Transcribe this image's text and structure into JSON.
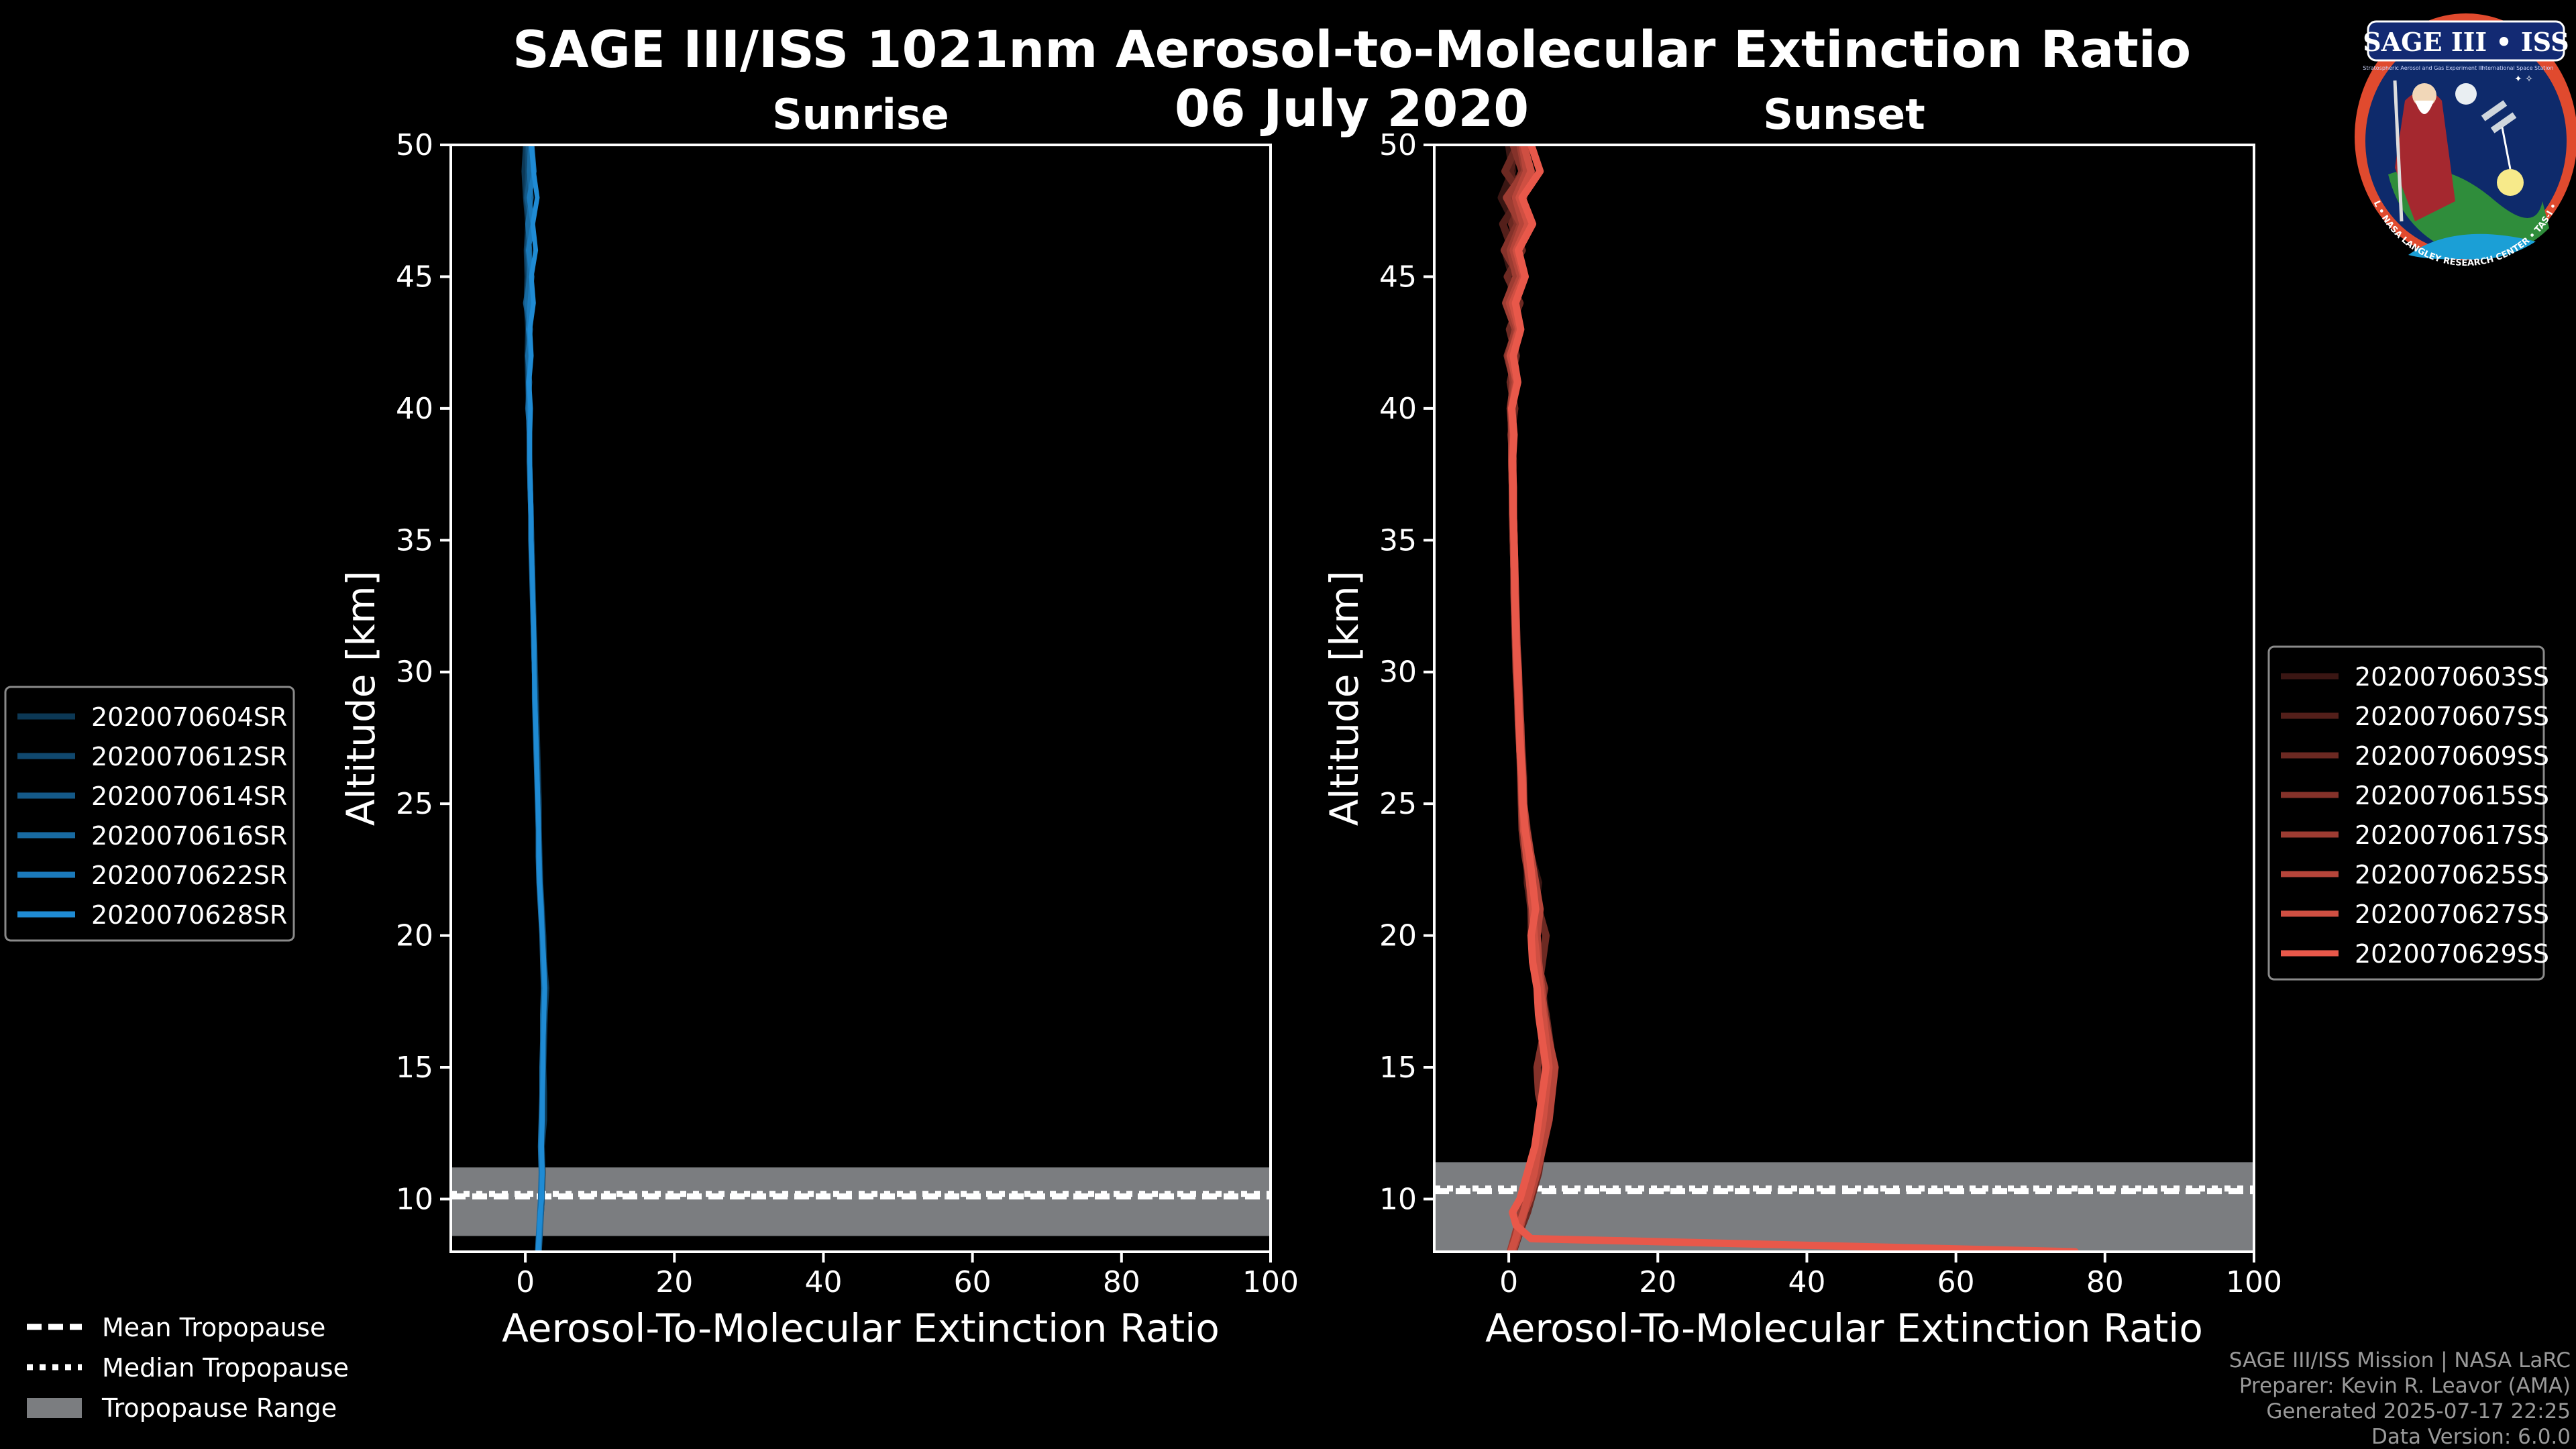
{
  "header": {
    "title": "SAGE III/ISS 1021nm Aerosol-to-Molecular Extinction Ratio",
    "date": "06 July 2020"
  },
  "logo": {
    "title": "SAGE III • ISS",
    "ring_text": "BALL • NASA LANGLEY RESEARCH CENTER • TAS-I • ESA",
    "sub_left": "Stratospheric Aerosol and Gas Experiment III",
    "sub_right": "International Space Station"
  },
  "footer": {
    "line1": "SAGE III/ISS Mission | NASA LaRC",
    "line2": "Preparer: Kevin R. Leavor (AMA)",
    "line3": "Generated 2025-07-17 22:25",
    "line4": "Data Version: 6.0.0"
  },
  "colors": {
    "sunrise": "#1f8bd4",
    "sunset": "#e8584a",
    "tropopause_range": "#7b7d80"
  },
  "tropopause_legend": {
    "mean": "Mean Tropopause",
    "median": "Median Tropopause",
    "range": "Tropopause Range"
  },
  "chart_data": [
    {
      "type": "line",
      "panel": "sunrise",
      "title": "Sunrise",
      "xlabel": "Aerosol-To-Molecular Extinction Ratio",
      "ylabel": "Altitude [km]",
      "xlim": [
        -10,
        100
      ],
      "ylim": [
        8,
        50
      ],
      "xticks": [
        0,
        20,
        40,
        60,
        80,
        100
      ],
      "yticks": [
        10,
        15,
        20,
        25,
        30,
        35,
        40,
        45,
        50
      ],
      "tropopause": {
        "mean": 10.1,
        "median": 10.2,
        "range": [
          8.6,
          11.2
        ]
      },
      "legend_position": "outside-left",
      "altitudes": [
        8.0,
        8.5,
        9.0,
        9.5,
        10.0,
        11.0,
        12.0,
        13.0,
        14.0,
        15.0,
        16.0,
        17.0,
        18.0,
        19.0,
        20.0,
        21.0,
        22.0,
        23.0,
        24.0,
        25.0,
        26.0,
        27.0,
        28.0,
        29.0,
        30.0,
        31.0,
        32.0,
        33.0,
        34.0,
        35.0,
        36.0,
        37.0,
        38.0,
        39.0,
        40.0,
        41.0,
        42.0,
        43.0,
        44.0,
        45.0,
        46.0,
        47.0,
        48.0,
        49.0,
        50.0
      ],
      "series": [
        {
          "name": "2020070604SR",
          "values": [
            1.8,
            1.9,
            2.0,
            2.2,
            2.3,
            2.4,
            2.3,
            2.6,
            2.6,
            2.5,
            2.6,
            2.7,
            2.9,
            2.6,
            2.5,
            2.3,
            2.1,
            2.0,
            1.9,
            1.9,
            1.8,
            1.7,
            1.6,
            1.5,
            1.4,
            1.3,
            1.2,
            1.1,
            1.0,
            0.9,
            0.8,
            0.7,
            0.6,
            0.5,
            0.4,
            0.3,
            0.2,
            0.3,
            0.1,
            0.2,
            0.1,
            0.3,
            0.0,
            -0.2,
            0.0
          ]
        },
        {
          "name": "2020070612SR",
          "values": [
            1.7,
            1.8,
            1.9,
            2.0,
            2.2,
            2.3,
            2.2,
            2.3,
            2.4,
            2.4,
            2.5,
            2.6,
            2.7,
            2.5,
            2.4,
            2.2,
            2.0,
            1.9,
            1.8,
            1.8,
            1.7,
            1.6,
            1.5,
            1.4,
            1.3,
            1.2,
            1.1,
            1.0,
            1.0,
            0.9,
            0.8,
            0.7,
            0.6,
            0.6,
            0.4,
            0.4,
            0.3,
            0.5,
            0.1,
            0.4,
            0.2,
            0.5,
            0.1,
            0.3,
            0.2
          ]
        },
        {
          "name": "2020070614SR",
          "values": [
            1.9,
            2.0,
            2.1,
            2.2,
            2.3,
            2.2,
            2.1,
            2.2,
            2.3,
            2.3,
            2.4,
            2.4,
            2.5,
            2.4,
            2.3,
            2.1,
            1.9,
            1.8,
            1.7,
            1.7,
            1.6,
            1.5,
            1.4,
            1.3,
            1.2,
            1.1,
            1.0,
            1.0,
            0.9,
            0.8,
            0.8,
            0.7,
            0.5,
            0.6,
            0.3,
            0.5,
            0.4,
            0.6,
            0.0,
            0.6,
            0.3,
            0.8,
            0.2,
            0.6,
            0.4
          ]
        },
        {
          "name": "2020070616SR",
          "values": [
            1.6,
            1.7,
            1.8,
            1.9,
            2.0,
            2.1,
            2.0,
            2.1,
            2.2,
            2.2,
            2.3,
            2.3,
            2.4,
            2.3,
            2.2,
            2.0,
            1.8,
            1.7,
            1.7,
            1.6,
            1.5,
            1.4,
            1.3,
            1.2,
            1.2,
            1.1,
            1.0,
            0.9,
            0.8,
            0.7,
            0.7,
            0.6,
            0.5,
            0.5,
            0.4,
            0.6,
            0.3,
            0.7,
            0.2,
            0.5,
            0.6,
            0.3,
            0.8,
            0.5,
            0.7
          ]
        },
        {
          "name": "2020070622SR",
          "values": [
            1.8,
            1.9,
            2.0,
            2.1,
            2.1,
            2.2,
            2.1,
            2.2,
            2.3,
            2.3,
            2.4,
            2.5,
            2.6,
            2.4,
            2.3,
            2.2,
            2.0,
            1.9,
            1.8,
            1.7,
            1.6,
            1.5,
            1.4,
            1.3,
            1.2,
            1.1,
            1.1,
            1.0,
            0.9,
            0.8,
            0.7,
            0.6,
            0.6,
            0.5,
            0.5,
            0.4,
            0.7,
            0.4,
            0.6,
            0.9,
            0.4,
            1.0,
            0.5,
            1.2,
            0.9
          ]
        },
        {
          "name": "2020070628SR",
          "values": [
            1.7,
            1.8,
            1.9,
            2.0,
            2.2,
            2.3,
            2.2,
            2.3,
            2.3,
            2.4,
            2.4,
            2.5,
            2.6,
            2.5,
            2.3,
            2.1,
            1.9,
            1.8,
            1.8,
            1.7,
            1.6,
            1.5,
            1.4,
            1.3,
            1.2,
            1.2,
            1.1,
            1.0,
            0.9,
            0.8,
            0.8,
            0.7,
            0.6,
            0.6,
            0.7,
            0.5,
            0.8,
            0.6,
            1.1,
            0.8,
            1.4,
            1.0,
            1.6,
            1.1,
            0.8
          ]
        }
      ]
    },
    {
      "type": "line",
      "panel": "sunset",
      "title": "Sunset",
      "xlabel": "Aerosol-To-Molecular Extinction Ratio",
      "ylabel": "Altitude [km]",
      "xlim": [
        -10,
        100
      ],
      "ylim": [
        8,
        50
      ],
      "xticks": [
        0,
        20,
        40,
        60,
        80,
        100
      ],
      "yticks": [
        10,
        15,
        20,
        25,
        30,
        35,
        40,
        45,
        50
      ],
      "tropopause": {
        "mean": 10.3,
        "median": 10.4,
        "range": [
          8.0,
          11.4
        ]
      },
      "legend_position": "outside-right",
      "altitudes": [
        8.0,
        8.5,
        9.0,
        9.5,
        10.0,
        11.0,
        12.0,
        13.0,
        14.0,
        15.0,
        16.0,
        17.0,
        18.0,
        19.0,
        20.0,
        21.0,
        22.0,
        23.0,
        24.0,
        25.0,
        26.0,
        27.0,
        28.0,
        29.0,
        30.0,
        31.0,
        32.0,
        33.0,
        34.0,
        35.0,
        36.0,
        37.0,
        38.0,
        39.0,
        40.0,
        41.0,
        42.0,
        43.0,
        44.0,
        45.0,
        46.0,
        47.0,
        48.0,
        49.0,
        50.0
      ],
      "series": [
        {
          "name": "2020070603SS",
          "values": [
            0.5,
            1.0,
            1.5,
            2.0,
            2.5,
            3.5,
            4.5,
            5.0,
            4.5,
            4.0,
            4.5,
            5.0,
            4.5,
            3.5,
            3.0,
            3.5,
            4.0,
            3.0,
            2.5,
            2.0,
            2.0,
            1.8,
            1.5,
            1.5,
            1.2,
            1.0,
            1.0,
            0.8,
            0.8,
            0.6,
            0.6,
            0.5,
            0.5,
            0.4,
            0.3,
            0.6,
            0.2,
            0.8,
            0.1,
            0.5,
            -0.5,
            0.8,
            -1.0,
            0.5,
            0.0
          ]
        },
        {
          "name": "2020070607SS",
          "values": [
            0.3,
            0.8,
            1.2,
            1.8,
            2.2,
            3.0,
            4.0,
            4.5,
            5.0,
            5.5,
            5.0,
            4.5,
            4.0,
            3.5,
            3.0,
            3.0,
            2.5,
            2.5,
            2.0,
            2.0,
            1.8,
            1.6,
            1.5,
            1.3,
            1.2,
            1.0,
            0.9,
            0.8,
            0.7,
            0.6,
            0.5,
            0.5,
            0.4,
            0.4,
            0.3,
            0.8,
            0.1,
            1.0,
            -0.3,
            1.2,
            0.5,
            -0.8,
            1.5,
            0.2,
            1.0
          ]
        },
        {
          "name": "2020070609SS",
          "values": [
            0.6,
            1.2,
            1.8,
            2.5,
            3.0,
            4.0,
            4.5,
            4.0,
            5.5,
            6.0,
            5.5,
            5.0,
            4.0,
            4.5,
            5.0,
            4.0,
            3.0,
            2.5,
            2.0,
            1.8,
            1.8,
            1.5,
            1.4,
            1.2,
            1.1,
            1.0,
            0.9,
            0.8,
            0.7,
            0.7,
            0.6,
            0.5,
            0.6,
            0.3,
            0.8,
            0.2,
            1.0,
            0.1,
            1.5,
            -0.2,
            1.8,
            0.4,
            2.0,
            -0.5,
            1.2
          ]
        },
        {
          "name": "2020070615SS",
          "values": [
            0.4,
            0.9,
            1.4,
            2.0,
            2.6,
            3.5,
            4.0,
            4.8,
            4.0,
            3.8,
            4.5,
            4.2,
            4.8,
            3.8,
            3.2,
            3.0,
            2.8,
            2.2,
            1.8,
            1.7,
            1.6,
            1.5,
            1.3,
            1.2,
            1.0,
            0.9,
            0.8,
            0.7,
            0.7,
            0.6,
            0.5,
            0.5,
            0.4,
            0.5,
            0.2,
            0.7,
            -0.2,
            1.0,
            0.0,
            1.4,
            -0.6,
            1.2,
            0.2,
            1.8,
            0.6
          ]
        },
        {
          "name": "2020070617SS",
          "values": [
            0.2,
            0.7,
            1.2,
            1.6,
            2.0,
            2.8,
            3.5,
            4.2,
            4.6,
            5.2,
            4.8,
            4.4,
            4.0,
            3.6,
            3.2,
            3.5,
            3.0,
            2.6,
            2.2,
            1.9,
            1.7,
            1.5,
            1.4,
            1.2,
            1.1,
            1.0,
            0.9,
            0.8,
            0.7,
            0.6,
            0.6,
            0.5,
            0.4,
            0.4,
            0.3,
            0.6,
            0.0,
            0.9,
            -0.4,
            1.0,
            0.2,
            1.6,
            -0.3,
            2.2,
            1.5
          ]
        },
        {
          "name": "2020070625SS",
          "values": [
            0.5,
            1.1,
            1.6,
            2.1,
            2.8,
            3.8,
            4.6,
            5.4,
            5.8,
            6.2,
            5.4,
            4.8,
            4.4,
            4.0,
            3.8,
            4.2,
            3.6,
            3.0,
            2.4,
            2.0,
            1.9,
            1.7,
            1.6,
            1.4,
            1.3,
            1.1,
            1.0,
            0.9,
            0.8,
            0.7,
            0.6,
            0.6,
            0.5,
            0.6,
            0.4,
            0.9,
            0.3,
            1.2,
            0.1,
            1.6,
            0.6,
            1.9,
            0.9,
            2.4,
            1.8
          ]
        },
        {
          "name": "2020070627SS",
          "values": [
            0.3,
            0.9,
            1.4,
            2.0,
            2.5,
            3.4,
            4.0,
            4.6,
            5.0,
            5.4,
            5.0,
            4.6,
            4.2,
            3.8,
            3.4,
            3.2,
            2.8,
            2.4,
            2.0,
            1.8,
            1.7,
            1.5,
            1.4,
            1.3,
            1.1,
            1.0,
            0.9,
            0.8,
            0.7,
            0.7,
            0.6,
            0.5,
            0.5,
            0.6,
            0.4,
            1.1,
            0.2,
            1.4,
            0.5,
            2.0,
            1.0,
            2.6,
            1.4,
            3.0,
            2.0
          ]
        },
        {
          "name": "2020070629SS",
          "values": [
            76.0,
            3.0,
            1.0,
            0.5,
            1.5,
            2.5,
            3.5,
            4.0,
            4.5,
            5.0,
            4.5,
            4.0,
            3.8,
            3.2,
            3.0,
            3.6,
            3.2,
            2.8,
            2.2,
            1.9,
            1.8,
            1.6,
            1.4,
            1.3,
            1.2,
            1.0,
            0.9,
            0.8,
            0.8,
            0.7,
            0.6,
            0.6,
            0.5,
            0.7,
            0.4,
            1.2,
            0.6,
            1.6,
            0.9,
            2.2,
            1.3,
            3.2,
            1.8,
            4.2,
            3.0
          ]
        }
      ]
    }
  ]
}
